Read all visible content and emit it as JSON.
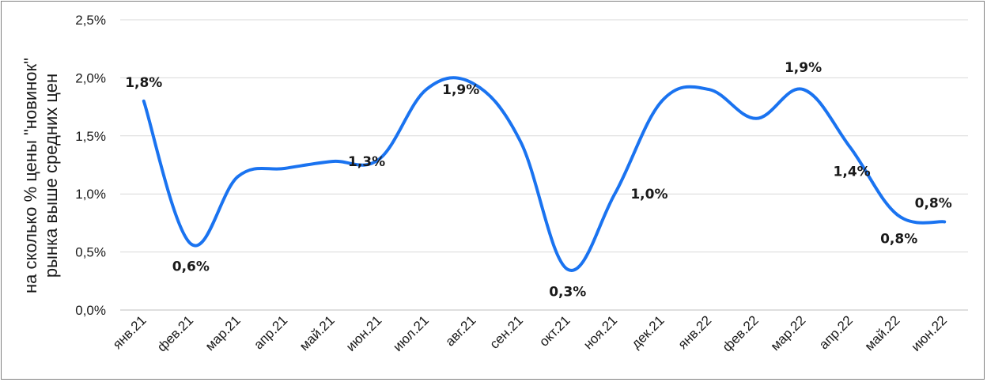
{
  "chart_data": {
    "type": "line",
    "categories": [
      "янв.21",
      "фев.21",
      "мар.21",
      "апр.21",
      "май.21",
      "июн.21",
      "июл.21",
      "авг.21",
      "сен.21",
      "окт.21",
      "ноя.21",
      "дек.21",
      "янв.22",
      "фев.22",
      "мар.22",
      "апр.22",
      "май.22",
      "июн.22"
    ],
    "series": [
      {
        "values": [
          1.8,
          0.57,
          1.15,
          1.22,
          1.28,
          1.3,
          1.9,
          1.95,
          1.45,
          0.35,
          1.0,
          1.8,
          1.9,
          1.65,
          1.9,
          1.4,
          0.82,
          0.76
        ],
        "color": "#1a73f0"
      }
    ],
    "data_labels": [
      {
        "index": 0,
        "text": "1,8%"
      },
      {
        "index": 1,
        "text": "0,6%"
      },
      {
        "index": 4,
        "text": "1,3%"
      },
      {
        "index": 6,
        "text": "1,9%"
      },
      {
        "index": 9,
        "text": "0,3%"
      },
      {
        "index": 10,
        "text": "1,0%"
      },
      {
        "index": 14,
        "text": "1,9%"
      },
      {
        "index": 15,
        "text": "1,4%"
      },
      {
        "index": 16,
        "text": "0,8%"
      },
      {
        "index": 17,
        "text": "0,8%"
      }
    ],
    "ylabel": "на сколько % цены \"новинок\" рынка выше средних цен",
    "ylabel_lines": [
      "на сколько % цены \"новинок\"",
      "рынка выше средних цен"
    ],
    "yticks": [
      "0,0%",
      "0,5%",
      "1,0%",
      "1,5%",
      "2,0%",
      "2,5%"
    ],
    "ylim": [
      0,
      2.5
    ],
    "grid": true,
    "legend": "none"
  }
}
